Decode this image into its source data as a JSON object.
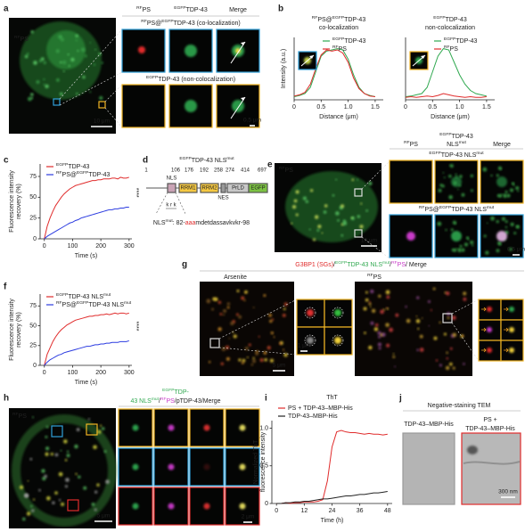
{
  "panels": {
    "a": {
      "label": "a",
      "image_label": [
        {
          "sup": "RF"
        },
        "PS"
      ],
      "headers": [
        {
          "lines": [
            [
              {
                "sup": "RF"
              },
              "PS"
            ]
          ],
          "color": "#e02b2b"
        },
        {
          "lines": [
            [
              {
                "sup": "EGFP"
              },
              "TDP-43"
            ]
          ],
          "color": "#2fa84f"
        },
        {
          "lines": [
            "Merge"
          ],
          "color": "#222222"
        }
      ],
      "rows": [
        [
          {
            "sup": "RF"
          },
          "PS@",
          {
            "sup": "EGFP"
          },
          "TDP-43 (co-localization)"
        ],
        [
          {
            "sup": "EGFP"
          },
          "TDP-43 (non-colocalization)"
        ]
      ],
      "scale_large": "10 μm",
      "scale_small": "0.5 μm"
    },
    "b": {
      "label": "b"
    },
    "c": {
      "label": "c"
    },
    "d": {
      "label": "d",
      "title": [
        {
          "sup": "EGFP"
        },
        "TDP-43 NLS",
        {
          "sup": "mut"
        }
      ],
      "positions": [
        1,
        106,
        176,
        192,
        258,
        274,
        414,
        697
      ],
      "domains": [
        "NLS",
        "RRM1",
        "RRM2",
        "NES",
        "PrLD",
        "EGFP"
      ],
      "krk": "k r k",
      "mutation": [
        "NLS",
        {
          "sup": "mut"
        },
        ": 82-",
        {
          "t": "aaa",
          "color": "#e02b2b"
        },
        "mdetdassavkvkr-98"
      ]
    },
    "e": {
      "label": "e",
      "image_label": [
        {
          "sup": "RF"
        },
        "PS"
      ],
      "headers": [
        {
          "lines": [
            [
              {
                "sup": "RF"
              },
              "PS"
            ]
          ],
          "color": "#e02b2b"
        },
        {
          "lines": [
            [
              {
                "sup": "EGFP"
              },
              "TDP-43"
            ],
            [
              "NLS",
              {
                "sup": "mut"
              }
            ]
          ],
          "color": "#2fa84f"
        },
        {
          "lines": [
            "Merge"
          ],
          "color": "#222222"
        }
      ],
      "rows": [
        [
          {
            "sup": "EGFP"
          },
          "TDP-43 NLS",
          {
            "sup": "mut"
          }
        ],
        [
          {
            "sup": "RF"
          },
          "PS@",
          {
            "sup": "EGFP"
          },
          "TDP-43 NLS",
          {
            "sup": "mut"
          }
        ]
      ],
      "scale_large": "10 μm",
      "scale_small": "0.5 μm"
    },
    "f": {
      "label": "f"
    },
    "g": {
      "label": "g",
      "title": [
        {
          "t": "G3BP1 (SGs)",
          "color": "#e02b2b"
        },
        "/",
        {
          "sup": "EGFP",
          "color": "#2fa84f"
        },
        {
          "t": "TDP-43 NLS",
          "color": "#2fa84f"
        },
        {
          "sup": "mut",
          "color": "#2fa84f"
        },
        "/",
        {
          "sup": "RF",
          "color": "#c93ac9"
        },
        {
          "t": "PS",
          "color": "#c93ac9"
        },
        "/ Merge"
      ],
      "left_label": "Arsenite",
      "right_label": [
        {
          "sup": "RF"
        },
        "PS"
      ],
      "scale_large": "5 μm",
      "scale_small": "1 μm"
    },
    "h": {
      "label": "h",
      "title_lines": [
        [
          {
            "sup": "EGFP",
            "color": "#2fa84f"
          },
          {
            "t": "TDP-",
            "color": "#2fa84f"
          }
        ],
        [
          {
            "t": "43 NLS",
            "color": "#2fa84f"
          },
          {
            "sup": "mut",
            "color": "#2fa84f"
          },
          "/",
          {
            "sup": "RF",
            "color": "#c93ac9"
          },
          {
            "t": "PS",
            "color": "#c93ac9"
          },
          "/pTDP-43/Merge"
        ]
      ],
      "image_label": [
        {
          "sup": "RF"
        },
        "PS"
      ],
      "scale_large": "5 μm",
      "scale_small": "2 μm"
    },
    "i": {
      "label": "i"
    },
    "j": {
      "label": "j",
      "title": "Negative-staining TEM",
      "tiles": [
        {
          "lines": [
            "TDP-43–MBP-His"
          ],
          "color": "#222222"
        },
        {
          "lines": [
            "PS +",
            "TDP-43–MBP-His"
          ],
          "color": "#e02b2b"
        }
      ],
      "scale": "300 nm"
    }
  },
  "chart_data": [
    {
      "type": "line",
      "title": [
        [
          {
            "sup": "RF"
          },
          "PS@",
          {
            "sup": "EGFP"
          },
          "TDP-43"
        ],
        "co-localization"
      ],
      "xlabel": "Distance (μm)",
      "ylabel": [
        "Intensity (a.u.)"
      ],
      "legend": "upper right",
      "x": [
        0,
        0.1,
        0.2,
        0.3,
        0.4,
        0.5,
        0.6,
        0.7,
        0.8,
        0.9,
        1,
        1.1,
        1.2,
        1.3,
        1.4,
        1.5
      ],
      "series": [
        {
          "name": [
            {
              "sup": "EGFP"
            },
            "TDP-43"
          ],
          "color": "#2fa84f",
          "values": [
            0.05,
            0.07,
            0.1,
            0.2,
            0.45,
            0.7,
            0.78,
            0.8,
            0.82,
            0.8,
            0.65,
            0.4,
            0.2,
            0.1,
            0.07,
            0.05
          ]
        },
        {
          "name": [
            {
              "sup": "RF"
            },
            "PS"
          ],
          "color": "#e02b2b",
          "values": [
            0.06,
            0.08,
            0.12,
            0.25,
            0.5,
            0.72,
            0.8,
            0.78,
            0.8,
            0.75,
            0.6,
            0.35,
            0.18,
            0.1,
            0.06,
            0.05
          ]
        }
      ],
      "xlim": [
        0,
        1.65
      ],
      "ylim": [
        0,
        1
      ],
      "xticks": [
        0,
        0.5,
        {
          "value": 1,
          "label": "1.0"
        },
        1.5
      ]
    },
    {
      "type": "line",
      "title": [
        [
          {
            "sup": "EGFP"
          },
          "TDP-43"
        ],
        "non-colocalization"
      ],
      "xlabel": "Distance (μm)",
      "legend": "upper right",
      "x": [
        0,
        0.1,
        0.2,
        0.3,
        0.4,
        0.5,
        0.6,
        0.7,
        0.8,
        0.9,
        1,
        1.1,
        1.2,
        1.3,
        1.4,
        1.5
      ],
      "series": [
        {
          "name": [
            {
              "sup": "EGFP"
            },
            "TDP-43"
          ],
          "color": "#2fa84f",
          "values": [
            0.05,
            0.06,
            0.08,
            0.1,
            0.2,
            0.45,
            0.7,
            0.82,
            0.8,
            0.6,
            0.4,
            0.25,
            0.15,
            0.1,
            0.08,
            0.06
          ]
        },
        {
          "name": [
            {
              "sup": "RF"
            },
            "PS"
          ],
          "color": "#e02b2b",
          "values": [
            0.04,
            0.05,
            0.04,
            0.05,
            0.06,
            0.05,
            0.07,
            0.1,
            0.08,
            0.06,
            0.05,
            0.04,
            0.05,
            0.04,
            0.04,
            0.05
          ]
        }
      ],
      "xlim": [
        0,
        1.65
      ],
      "ylim": [
        0,
        1
      ],
      "xticks": [
        0,
        0.5,
        {
          "value": 1,
          "label": "1.0"
        },
        1.5
      ]
    },
    {
      "type": "line",
      "xlabel": "Time (s)",
      "ylabel": [
        "Fluorescence intensity",
        "recovery (%)"
      ],
      "legend": "upper left",
      "annotation": "****",
      "x": [
        0,
        10,
        20,
        30,
        40,
        50,
        60,
        70,
        80,
        90,
        100,
        110,
        120,
        130,
        140,
        150,
        160,
        170,
        180,
        190,
        200,
        210,
        220,
        230,
        240,
        250,
        260,
        270,
        280,
        290,
        300
      ],
      "series": [
        {
          "name": [
            {
              "sup": "EGFP"
            },
            "TDP-43"
          ],
          "color": "#e02b2b",
          "values": [
            0,
            15,
            25,
            33,
            40,
            45,
            50,
            54,
            57,
            60,
            62,
            64,
            65,
            66,
            67,
            68,
            69,
            70,
            70,
            71,
            71,
            72,
            72,
            72,
            73,
            73,
            72,
            74,
            73,
            73,
            74
          ]
        },
        {
          "name": [
            {
              "sup": "RF"
            },
            "PS@",
            {
              "sup": "EGFP"
            },
            "TDP-43"
          ],
          "color": "#2b3be0",
          "values": [
            0,
            3,
            5,
            7,
            9,
            11,
            13,
            15,
            17,
            19,
            20,
            22,
            23,
            25,
            26,
            27,
            28,
            29,
            30,
            31,
            32,
            33,
            34,
            35,
            35,
            36,
            36,
            37,
            37,
            38,
            38
          ]
        }
      ],
      "xlim": [
        -15,
        310
      ],
      "ylim": [
        0,
        90
      ],
      "xticks": [
        0,
        100,
        200,
        300
      ],
      "yticks": [
        0,
        25,
        50,
        75
      ]
    },
    {
      "type": "line",
      "xlabel": "Time (s)",
      "ylabel": [
        "Fluorescence intensity",
        "recovery (%)"
      ],
      "legend": "upper left",
      "annotation": "****",
      "x": [
        0,
        10,
        20,
        30,
        40,
        50,
        60,
        70,
        80,
        90,
        100,
        110,
        120,
        130,
        140,
        150,
        160,
        170,
        180,
        190,
        200,
        210,
        220,
        230,
        240,
        250,
        260,
        270,
        280,
        290,
        300
      ],
      "series": [
        {
          "name": [
            {
              "sup": "EGFP"
            },
            "TDP-43 NLS",
            {
              "sup": "mut"
            }
          ],
          "color": "#e02b2b",
          "values": [
            0,
            14,
            22,
            30,
            36,
            41,
            45,
            48,
            51,
            53,
            55,
            57,
            58,
            59,
            60,
            61,
            62,
            62,
            63,
            63,
            64,
            64,
            65,
            64,
            65,
            66,
            65,
            66,
            66,
            65,
            66
          ]
        },
        {
          "name": [
            {
              "sup": "RF"
            },
            "PS@",
            {
              "sup": "EGFP"
            },
            "TDP-43 NLS",
            {
              "sup": "mut"
            }
          ],
          "color": "#2b3be0",
          "values": [
            0,
            4,
            7,
            9,
            11,
            13,
            14,
            16,
            17,
            18,
            19,
            20,
            21,
            22,
            23,
            24,
            24,
            25,
            26,
            26,
            27,
            27,
            28,
            28,
            29,
            29,
            29,
            30,
            30,
            30,
            31
          ]
        }
      ],
      "xlim": [
        -15,
        310
      ],
      "ylim": [
        0,
        90
      ],
      "xticks": [
        0,
        100,
        200,
        300
      ],
      "yticks": [
        0,
        25,
        50,
        75
      ]
    },
    {
      "type": "line",
      "title": [
        "ThT"
      ],
      "xlabel": "Time (h)",
      "ylabel": [
        "Normalized ThT",
        "fluorescence intensity"
      ],
      "legend": "upper left",
      "x": [
        0,
        2,
        4,
        6,
        8,
        10,
        12,
        14,
        16,
        18,
        20,
        22,
        24,
        26,
        28,
        30,
        32,
        34,
        36,
        38,
        40,
        42,
        44,
        46,
        48
      ],
      "series": [
        {
          "name": "PS + TDP-43–MBP-His",
          "color": "#e02b2b",
          "values": [
            0,
            0,
            0.01,
            0,
            0.01,
            0.01,
            0.02,
            0.02,
            0.02,
            0.03,
            0.05,
            0.3,
            0.75,
            0.95,
            0.97,
            0.95,
            0.94,
            0.94,
            0.93,
            0.92,
            0.93,
            0.92,
            0.92,
            0.91,
            0.92
          ]
        },
        {
          "name": "TDP-43–MBP-His",
          "color": "#222222",
          "values": [
            0,
            0,
            0.01,
            0.01,
            0.02,
            0.02,
            0.03,
            0.03,
            0.04,
            0.05,
            0.06,
            0.06,
            0.07,
            0.08,
            0.09,
            0.1,
            0.1,
            0.11,
            0.12,
            0.12,
            0.13,
            0.14,
            0.14,
            0.15,
            0.16
          ]
        }
      ],
      "xlim": [
        -2,
        50
      ],
      "ylim": [
        0,
        1.1
      ],
      "xticks": [
        0,
        12,
        24,
        36,
        48
      ],
      "yticks": [
        0,
        0.5,
        {
          "value": 1,
          "label": "1.0"
        }
      ]
    }
  ]
}
